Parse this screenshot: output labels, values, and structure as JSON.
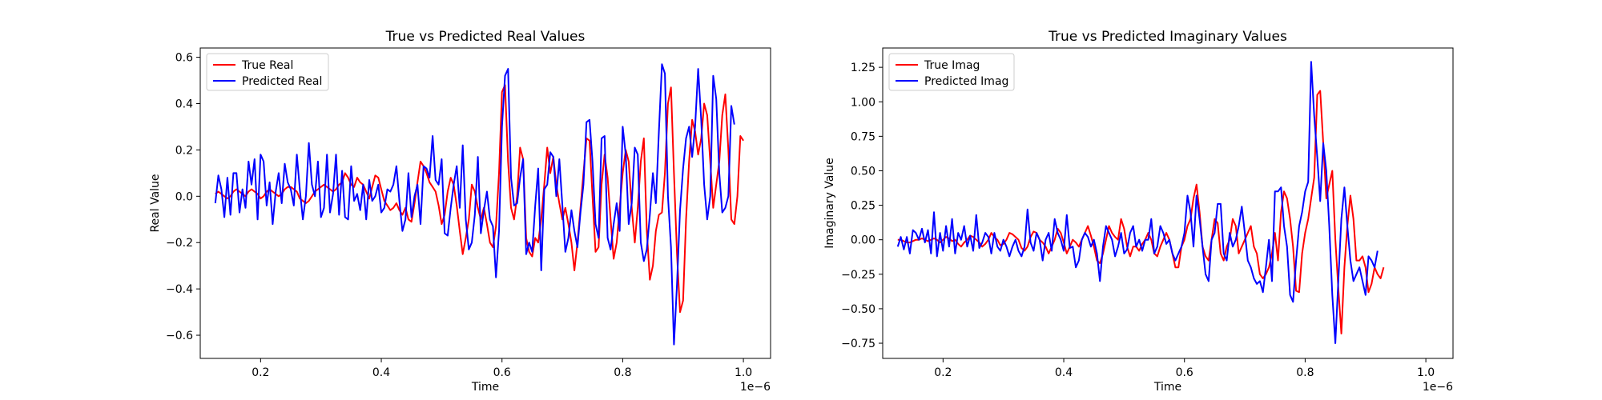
{
  "chart_data": [
    {
      "type": "line",
      "title": "True vs Predicted Real Values",
      "xlabel": "Time",
      "ylabel": "Real Value",
      "x_offset_label": "1e−6",
      "xlim": [
        0.1,
        1.045
      ],
      "ylim": [
        -0.7,
        0.64
      ],
      "xticks": [
        0.2,
        0.4,
        0.6,
        0.8,
        1.0
      ],
      "xtick_labels": [
        "0.2",
        "0.4",
        "0.6",
        "0.8",
        "1.0"
      ],
      "yticks": [
        -0.6,
        -0.4,
        -0.2,
        0.0,
        0.2,
        0.4,
        0.6
      ],
      "ytick_labels": [
        "−0.6",
        "−0.4",
        "−0.2",
        "0.0",
        "0.2",
        "0.4",
        "0.6"
      ],
      "grid": false,
      "legend_position": "top-left",
      "x_start": 0.125,
      "x_step": 0.005,
      "series": [
        {
          "name": "True Real",
          "color": "#ff0000",
          "values": [
            0.01,
            0.02,
            0.01,
            0.0,
            -0.01,
            0.0,
            0.02,
            0.03,
            0.02,
            0.01,
            0.0,
            0.02,
            0.03,
            0.02,
            0.01,
            -0.01,
            0.0,
            0.02,
            0.03,
            0.02,
            0.01,
            0.0,
            0.01,
            0.03,
            0.04,
            0.04,
            0.03,
            0.02,
            -0.01,
            -0.02,
            -0.03,
            -0.02,
            0.0,
            0.02,
            0.03,
            0.04,
            0.05,
            0.04,
            0.03,
            0.02,
            0.03,
            0.05,
            0.06,
            0.1,
            0.08,
            0.05,
            0.04,
            0.08,
            0.06,
            0.05,
            0.02,
            -0.01,
            0.04,
            0.09,
            0.08,
            0.03,
            -0.02,
            -0.04,
            -0.06,
            -0.05,
            -0.03,
            -0.06,
            -0.08,
            -0.05,
            -0.1,
            -0.11,
            -0.03,
            0.06,
            0.15,
            0.13,
            0.1,
            0.06,
            0.04,
            0.02,
            -0.04,
            -0.12,
            -0.08,
            0.02,
            0.08,
            0.05,
            -0.04,
            -0.15,
            -0.25,
            -0.18,
            -0.1,
            0.05,
            0.02,
            -0.05,
            -0.1,
            -0.05,
            -0.12,
            -0.2,
            -0.22,
            -0.13,
            0.1,
            0.45,
            0.48,
            0.15,
            -0.05,
            -0.1,
            0.0,
            0.21,
            0.16,
            -0.18,
            -0.24,
            -0.26,
            -0.18,
            -0.2,
            -0.1,
            0.05,
            0.21,
            0.1,
            0.17,
            0.05,
            -0.03,
            -0.1,
            -0.05,
            -0.12,
            -0.2,
            -0.32,
            -0.2,
            -0.05,
            0.1,
            0.25,
            0.24,
            0.0,
            -0.24,
            -0.22,
            0.05,
            0.18,
            0.08,
            -0.1,
            -0.27,
            -0.2,
            -0.05,
            0.1,
            0.2,
            0.15,
            -0.05,
            -0.2,
            -0.05,
            0.15,
            0.25,
            -0.15,
            -0.36,
            -0.3,
            -0.15,
            -0.08,
            -0.07,
            0.1,
            0.4,
            0.47,
            0.1,
            -0.25,
            -0.5,
            -0.45,
            -0.1,
            0.15,
            0.33,
            0.28,
            0.18,
            0.25,
            0.4,
            0.35,
            0.15,
            -0.05,
            0.05,
            0.15,
            0.35,
            0.44,
            0.2,
            -0.1,
            -0.12,
            0.0,
            0.26,
            0.24
          ]
        },
        {
          "name": "Predicted Real",
          "color": "#0000ff",
          "values": [
            -0.03,
            0.09,
            0.03,
            -0.09,
            0.08,
            -0.08,
            0.1,
            0.1,
            -0.07,
            0.03,
            -0.05,
            0.15,
            0.05,
            0.16,
            -0.1,
            0.18,
            0.15,
            -0.04,
            0.06,
            -0.12,
            0.02,
            0.1,
            -0.03,
            0.14,
            0.06,
            0.03,
            -0.04,
            0.18,
            0.03,
            -0.1,
            0.0,
            0.23,
            0.05,
            0.0,
            0.15,
            -0.09,
            -0.05,
            0.18,
            -0.07,
            0.01,
            0.18,
            -0.08,
            0.11,
            -0.09,
            -0.1,
            0.13,
            -0.02,
            0.01,
            -0.06,
            0.05,
            -0.1,
            0.07,
            -0.02,
            0.0,
            0.05,
            -0.07,
            -0.05,
            0.03,
            0.02,
            0.05,
            0.13,
            -0.02,
            -0.15,
            -0.1,
            0.1,
            -0.09,
            0.0,
            0.05,
            -0.12,
            0.13,
            0.12,
            0.08,
            0.26,
            0.07,
            0.05,
            0.16,
            -0.16,
            -0.17,
            -0.05,
            0.05,
            0.13,
            -0.05,
            0.22,
            -0.1,
            -0.23,
            -0.2,
            -0.08,
            0.17,
            -0.16,
            -0.06,
            0.02,
            -0.1,
            -0.13,
            -0.35,
            -0.15,
            0.3,
            0.52,
            0.55,
            0.08,
            -0.04,
            -0.03,
            0.08,
            0.16,
            -0.25,
            -0.2,
            -0.24,
            -0.04,
            0.12,
            -0.32,
            0.03,
            0.05,
            0.19,
            0.17,
            0.0,
            0.16,
            -0.04,
            -0.24,
            -0.18,
            -0.06,
            -0.15,
            -0.22,
            -0.07,
            0.05,
            0.32,
            0.33,
            0.15,
            -0.12,
            -0.18,
            0.25,
            0.26,
            -0.18,
            -0.23,
            -0.12,
            -0.03,
            -0.15,
            0.3,
            0.18,
            -0.12,
            -0.03,
            0.21,
            0.18,
            -0.2,
            -0.28,
            -0.23,
            -0.08,
            0.1,
            -0.03,
            0.28,
            0.57,
            0.53,
            0.0,
            -0.22,
            -0.64,
            -0.38,
            -0.06,
            0.12,
            0.25,
            0.3,
            0.17,
            0.3,
            0.55,
            0.33,
            0.05,
            -0.1,
            0.0,
            0.52,
            0.42,
            0.1,
            -0.07,
            -0.05,
            0.0,
            0.39,
            0.31
          ]
        }
      ]
    },
    {
      "type": "line",
      "title": "True vs Predicted Imaginary Values",
      "xlabel": "Time",
      "ylabel": "Imaginary Value",
      "x_offset_label": "1e−6",
      "xlim": [
        0.1,
        1.045
      ],
      "ylim": [
        -0.86,
        1.39
      ],
      "xticks": [
        0.2,
        0.4,
        0.6,
        0.8,
        1.0
      ],
      "xtick_labels": [
        "0.2",
        "0.4",
        "0.6",
        "0.8",
        "1.0"
      ],
      "yticks": [
        -0.75,
        -0.5,
        -0.25,
        0.0,
        0.25,
        0.5,
        0.75,
        1.0,
        1.25
      ],
      "ytick_labels": [
        "−0.75",
        "−0.50",
        "−0.25",
        "0.00",
        "0.25",
        "0.50",
        "0.75",
        "1.00",
        "1.25"
      ],
      "grid": false,
      "legend_position": "top-left",
      "x_start": 0.125,
      "x_step": 0.005,
      "series": [
        {
          "name": "True Imag",
          "color": "#ff0000",
          "values": [
            0.0,
            0.0,
            -0.01,
            -0.02,
            -0.02,
            -0.01,
            0.0,
            0.0,
            0.01,
            0.0,
            -0.01,
            0.0,
            0.01,
            0.0,
            -0.02,
            0.0,
            0.02,
            0.01,
            -0.01,
            0.0,
            -0.03,
            -0.05,
            -0.02,
            0.0,
            0.03,
            0.02,
            0.0,
            -0.02,
            -0.05,
            -0.03,
            0.0,
            0.05,
            0.02,
            0.0,
            -0.04,
            -0.03,
            0.0,
            0.05,
            0.04,
            0.02,
            0.0,
            -0.06,
            -0.08,
            -0.05,
            0.02,
            0.06,
            0.05,
            0.0,
            -0.02,
            -0.05,
            -0.1,
            -0.05,
            0.0,
            0.08,
            0.05,
            -0.02,
            -0.1,
            -0.05,
            0.0,
            -0.02,
            -0.05,
            0.0,
            0.05,
            0.1,
            0.03,
            -0.05,
            -0.15,
            -0.17,
            -0.1,
            0.0,
            0.1,
            0.05,
            0.02,
            0.0,
            0.15,
            0.08,
            -0.05,
            -0.12,
            -0.05,
            -0.05,
            -0.08,
            -0.03,
            0.0,
            0.05,
            0.0,
            -0.1,
            -0.12,
            -0.05,
            0.0,
            0.05,
            0.0,
            -0.1,
            -0.2,
            -0.2,
            -0.05,
            0.0,
            0.1,
            0.15,
            0.3,
            0.4,
            0.2,
            -0.05,
            -0.12,
            -0.15,
            0.0,
            0.15,
            0.12,
            -0.1,
            -0.15,
            -0.05,
            0.0,
            0.15,
            0.1,
            -0.1,
            -0.05,
            0.0,
            0.05,
            0.1,
            -0.05,
            -0.1,
            -0.25,
            -0.28,
            -0.25,
            -0.2,
            -0.1,
            0.05,
            -0.15,
            0.2,
            0.35,
            0.3,
            0.15,
            -0.05,
            -0.37,
            -0.38,
            -0.1,
            0.05,
            0.15,
            0.3,
            0.45,
            1.05,
            1.08,
            0.7,
            0.3,
            0.4,
            0.5,
            0.0,
            -0.35,
            -0.68,
            -0.2,
            0.1,
            0.32,
            0.15,
            -0.15,
            -0.15,
            -0.12,
            -0.2,
            -0.38,
            -0.32,
            -0.2,
            -0.25,
            -0.28,
            -0.2
          ]
        },
        {
          "name": "Predicted Imag",
          "color": "#0000ff",
          "values": [
            -0.05,
            0.02,
            -0.07,
            0.02,
            -0.1,
            0.07,
            0.05,
            0.0,
            0.08,
            -0.02,
            0.07,
            -0.1,
            0.2,
            -0.12,
            0.05,
            -0.08,
            0.1,
            -0.05,
            0.15,
            -0.1,
            0.05,
            0.0,
            0.1,
            -0.05,
            0.03,
            -0.08,
            0.18,
            -0.06,
            -0.02,
            0.05,
            0.02,
            -0.1,
            0.05,
            -0.05,
            -0.08,
            0.0,
            -0.05,
            -0.12,
            -0.05,
            0.0,
            -0.08,
            -0.12,
            -0.05,
            0.22,
            -0.02,
            -0.08,
            0.05,
            0.0,
            -0.15,
            0.0,
            0.05,
            -0.08,
            0.15,
            0.05,
            0.0,
            -0.08,
            0.18,
            -0.06,
            -0.05,
            -0.2,
            -0.15,
            0.0,
            0.05,
            0.02,
            -0.05,
            0.0,
            -0.1,
            -0.3,
            -0.05,
            0.1,
            0.05,
            0.0,
            -0.12,
            -0.05,
            0.05,
            -0.1,
            -0.07,
            0.05,
            0.1,
            -0.05,
            0.0,
            -0.08,
            0.0,
            0.0,
            0.15,
            -0.1,
            -0.05,
            0.1,
            0.05,
            -0.03,
            0.0,
            -0.1,
            -0.15,
            -0.1,
            -0.05,
            0.05,
            0.32,
            0.2,
            -0.05,
            0.32,
            0.15,
            -0.05,
            -0.25,
            -0.3,
            0.0,
            0.05,
            0.26,
            0.26,
            -0.1,
            -0.15,
            0.05,
            -0.05,
            0.0,
            0.1,
            0.24,
            0.05,
            -0.15,
            -0.2,
            -0.28,
            -0.32,
            -0.3,
            -0.38,
            -0.2,
            0.0,
            -0.3,
            0.35,
            0.35,
            0.38,
            0.1,
            -0.05,
            -0.4,
            -0.45,
            -0.15,
            0.1,
            0.2,
            0.35,
            0.42,
            1.29,
            0.9,
            0.6,
            0.28,
            0.7,
            0.5,
            0.1,
            -0.4,
            -0.75,
            -0.3,
            0.15,
            0.38,
            0.1,
            -0.15,
            -0.3,
            -0.25,
            -0.2,
            -0.3,
            -0.4,
            -0.12,
            -0.15,
            -0.2,
            -0.08
          ]
        }
      ]
    }
  ]
}
